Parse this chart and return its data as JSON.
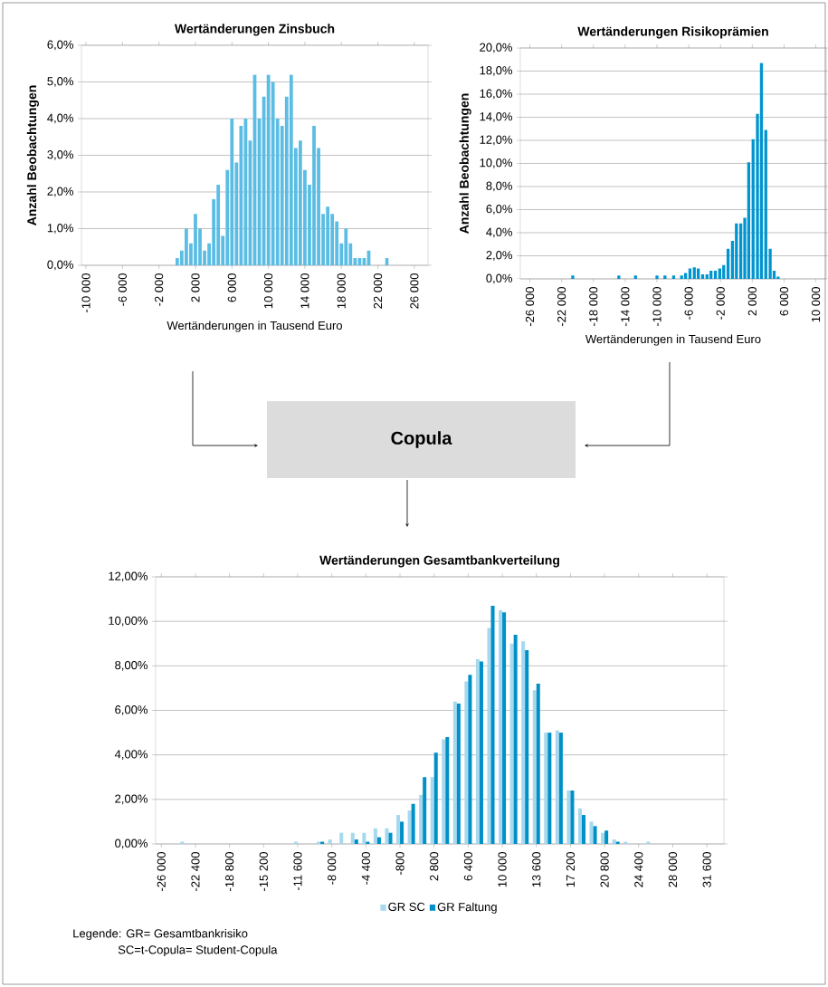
{
  "chart_data": [
    {
      "type": "bar",
      "title": "Wertänderungen Zinsbuch",
      "xlabel": "Wertänderungen in Tausend Euro",
      "ylabel": "Anzahl Beobachtungen",
      "color": "#5bbde4",
      "x": [
        0,
        500,
        1000,
        1500,
        2000,
        2500,
        3000,
        3500,
        4000,
        4500,
        5000,
        5500,
        6000,
        6500,
        7000,
        7500,
        8000,
        8500,
        9000,
        9500,
        10000,
        10500,
        11000,
        11500,
        12000,
        12500,
        13000,
        13500,
        14000,
        14500,
        15000,
        15500,
        16000,
        16500,
        17000,
        17500,
        18000,
        18500,
        19000,
        19500,
        20000,
        20500,
        21000,
        23000
      ],
      "values": [
        0.2,
        0.4,
        1.0,
        0.6,
        1.4,
        1.0,
        0.4,
        0.6,
        1.8,
        2.2,
        0.8,
        2.6,
        4.0,
        2.8,
        3.8,
        4.0,
        3.4,
        5.2,
        4.0,
        4.6,
        5.2,
        5.0,
        4.0,
        3.8,
        4.6,
        5.2,
        3.2,
        3.4,
        2.6,
        2.2,
        3.8,
        3.2,
        1.4,
        1.6,
        1.4,
        1.2,
        0.6,
        1.0,
        0.6,
        0.2,
        0.2,
        0.2,
        0.4,
        0.2
      ],
      "xlim": [
        -10500,
        27500
      ],
      "xticks": [
        {
          "value": -10000,
          "label": "-10 000"
        },
        {
          "value": -6000,
          "label": "-6 000"
        },
        {
          "value": -2000,
          "label": "-2 000"
        },
        {
          "value": 2000,
          "label": "2 000"
        },
        {
          "value": 6000,
          "label": "6 000"
        },
        {
          "value": 10000,
          "label": "10 000"
        },
        {
          "value": 14000,
          "label": "14 000"
        },
        {
          "value": 18000,
          "label": "18 000"
        },
        {
          "value": 22000,
          "label": "22 000"
        },
        {
          "value": 26000,
          "label": "26 000"
        }
      ],
      "ylim": [
        0,
        6
      ],
      "yticks": [
        {
          "value": 0,
          "label": "0,0%"
        },
        {
          "value": 1,
          "label": "1,0%"
        },
        {
          "value": 2,
          "label": "2,0%"
        },
        {
          "value": 3,
          "label": "3,0%"
        },
        {
          "value": 4,
          "label": "4,0%"
        },
        {
          "value": 5,
          "label": "5,0%"
        },
        {
          "value": 6,
          "label": "6,0%"
        }
      ],
      "grid": "y"
    },
    {
      "type": "bar",
      "title": "Wertänderungen Risikoprämien",
      "xlabel": "Wertänderungen in Tausend Euro",
      "ylabel": "Anzahl Beobachtungen",
      "color": "#0095cf",
      "x": [
        -20600,
        -14800,
        -12700,
        -10000,
        -9000,
        -7900,
        -6900,
        -6400,
        -5850,
        -5300,
        -4800,
        -4250,
        -3700,
        -3200,
        -2650,
        -2100,
        -1600,
        -1050,
        -500,
        0,
        550,
        1050,
        1550,
        2100,
        2650,
        3150,
        3700,
        4250,
        4750,
        5250
      ],
      "values": [
        0.3,
        0.3,
        0.3,
        0.3,
        0.3,
        0.3,
        0.3,
        0.5,
        0.9,
        1.0,
        0.9,
        0.4,
        0.4,
        0.7,
        0.7,
        0.9,
        1.2,
        2.6,
        3.3,
        4.8,
        4.8,
        5.3,
        10.1,
        12.1,
        14.3,
        18.7,
        12.9,
        2.6,
        0.7,
        0.2
      ],
      "xlim": [
        -27200,
        11300
      ],
      "xticks": [
        {
          "value": -26000,
          "label": "-26 000"
        },
        {
          "value": -22000,
          "label": "-22 000"
        },
        {
          "value": -18000,
          "label": "-18 000"
        },
        {
          "value": -14000,
          "label": "-14 000"
        },
        {
          "value": -10000,
          "label": "-10 000"
        },
        {
          "value": -6000,
          "label": "-6 000"
        },
        {
          "value": -2000,
          "label": "-2 000"
        },
        {
          "value": 2000,
          "label": "2 000"
        },
        {
          "value": 6000,
          "label": "6 000"
        },
        {
          "value": 10000,
          "label": "10 000"
        }
      ],
      "ylim": [
        0,
        20
      ],
      "yticks": [
        {
          "value": 0,
          "label": "0,0%"
        },
        {
          "value": 2,
          "label": "2,0%"
        },
        {
          "value": 4,
          "label": "4,0%"
        },
        {
          "value": 6,
          "label": "6,0%"
        },
        {
          "value": 8,
          "label": "8,0%"
        },
        {
          "value": 10,
          "label": "10,0%"
        },
        {
          "value": 12,
          "label": "12,0%"
        },
        {
          "value": 14,
          "label": "14,0%"
        },
        {
          "value": 16,
          "label": "16,0%"
        },
        {
          "value": 18,
          "label": "18,0%"
        },
        {
          "value": 20,
          "label": "20,0%"
        }
      ],
      "grid": "y"
    },
    {
      "type": "bar",
      "title": "Wertänderungen Gesamtbankverteilung",
      "x": [
        -26000,
        -24800,
        -23600,
        -22400,
        -21200,
        -20000,
        -18800,
        -17600,
        -16400,
        -15200,
        -14000,
        -12800,
        -11600,
        -10400,
        -9200,
        -8000,
        -6800,
        -5600,
        -4400,
        -3200,
        -2000,
        -800,
        400,
        1600,
        2800,
        4000,
        5200,
        6400,
        7600,
        8800,
        10000,
        11200,
        12400,
        13600,
        14800,
        16000,
        17200,
        18400,
        19600,
        20800,
        22000,
        23200,
        24400,
        25600,
        26800,
        28000,
        29200,
        30400,
        31600,
        32800
      ],
      "series": [
        {
          "name": "GR SC",
          "color": "#a6d8ee",
          "values": [
            0,
            0,
            0.1,
            0,
            0,
            0,
            0,
            0,
            0,
            0,
            0,
            0,
            0.1,
            0,
            0.1,
            0.2,
            0.5,
            0.5,
            0.5,
            0.7,
            0.7,
            1.3,
            1.5,
            2.2,
            3.0,
            4.7,
            6.4,
            7.3,
            8.3,
            9.7,
            10.5,
            9.0,
            9.1,
            6.9,
            5.0,
            5.1,
            2.4,
            1.6,
            1.0,
            0.5,
            0.2,
            0.1,
            0,
            0.1,
            0,
            0,
            0,
            0,
            0,
            0
          ]
        },
        {
          "name": "GR Faltung",
          "color": "#0090c8",
          "values": [
            0,
            0,
            0,
            0,
            0,
            0,
            0,
            0,
            0,
            0,
            0,
            0,
            0,
            0,
            0.1,
            0,
            0,
            0.2,
            0.1,
            0.3,
            0.5,
            1.0,
            1.8,
            3.0,
            4.1,
            4.8,
            6.3,
            7.6,
            8.2,
            10.7,
            10.4,
            9.4,
            8.7,
            7.2,
            5.0,
            5.0,
            2.4,
            1.3,
            0.8,
            0.6,
            0.1,
            0,
            0,
            0,
            0,
            0,
            0,
            0,
            0,
            0
          ]
        }
      ],
      "xlim": [
        -26600,
        33400
      ],
      "xticks": [
        {
          "value": -26000,
          "label": "-26 000"
        },
        {
          "value": -22400,
          "label": "-22 400"
        },
        {
          "value": -18800,
          "label": "-18 800"
        },
        {
          "value": -15200,
          "label": "-15 200"
        },
        {
          "value": -11600,
          "label": "-11 600"
        },
        {
          "value": -8000,
          "label": "-8 000"
        },
        {
          "value": -4400,
          "label": "-4 400"
        },
        {
          "value": -800,
          "label": "-800"
        },
        {
          "value": 2800,
          "label": "2 800"
        },
        {
          "value": 6400,
          "label": "6 400"
        },
        {
          "value": 10000,
          "label": "10 000"
        },
        {
          "value": 13600,
          "label": "13 600"
        },
        {
          "value": 17200,
          "label": "17 200"
        },
        {
          "value": 20800,
          "label": "20 800"
        },
        {
          "value": 24400,
          "label": "24 400"
        },
        {
          "value": 28000,
          "label": "28 000"
        },
        {
          "value": 31600,
          "label": "31 600"
        }
      ],
      "ylim": [
        0,
        12
      ],
      "yticks": [
        {
          "value": 0,
          "label": "0,00%"
        },
        {
          "value": 2,
          "label": "2,00%"
        },
        {
          "value": 4,
          "label": "4,00%"
        },
        {
          "value": 6,
          "label": "6,00%"
        },
        {
          "value": 8,
          "label": "8,00%"
        },
        {
          "value": 10,
          "label": "10,00%"
        },
        {
          "value": 12,
          "label": "12,00%"
        }
      ],
      "grid": "y",
      "legend": "bottom",
      "annotations": [
        "Legende: GR= Gesamtbankrisiko",
        "SC=t-Copula= Student-Copula"
      ]
    },
    {
      "type": "other",
      "title": "Copula"
    }
  ]
}
